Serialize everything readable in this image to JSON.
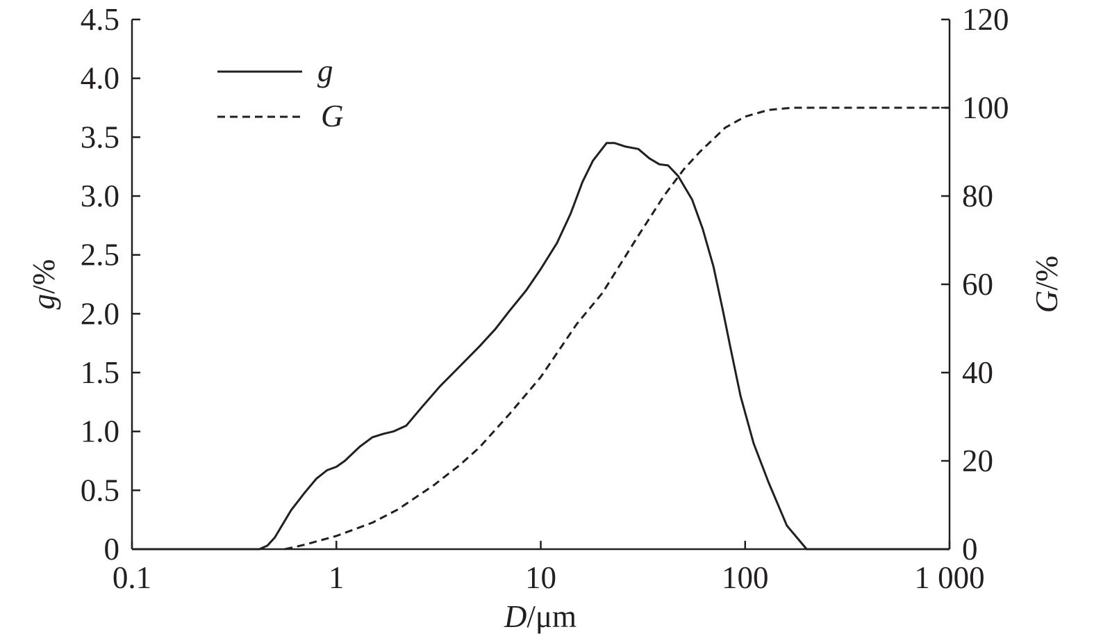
{
  "chart_data": {
    "type": "line",
    "x_axis": {
      "label_var": "D",
      "label_unit": "/μm",
      "scale": "log",
      "range": [
        0.1,
        1000
      ],
      "ticks": [
        0.1,
        1,
        10,
        100,
        1000
      ],
      "tick_labels": [
        "0.1",
        "1",
        "10",
        "100",
        "1 000"
      ]
    },
    "y_left": {
      "label_var": "g",
      "label_unit": "/%",
      "range": [
        0,
        4.5
      ],
      "ticks": [
        0,
        0.5,
        1.0,
        1.5,
        2.0,
        2.5,
        3.0,
        3.5,
        4.0,
        4.5
      ],
      "tick_labels": [
        "0",
        "0.5",
        "1.0",
        "1.5",
        "2.0",
        "2.5",
        "3.0",
        "3.5",
        "4.0",
        "4.5"
      ]
    },
    "y_right": {
      "label_var": "G",
      "label_unit": "/%",
      "range": [
        0,
        120
      ],
      "ticks": [
        0,
        20,
        40,
        60,
        80,
        100,
        120
      ],
      "tick_labels": [
        "0",
        "20",
        "40",
        "60",
        "80",
        "100",
        "120"
      ]
    },
    "legend": {
      "placement": "top-left"
    },
    "grid": false,
    "series": [
      {
        "name": "g",
        "axis": "left",
        "style": "solid",
        "x": [
          0.1,
          0.42,
          0.46,
          0.5,
          0.55,
          0.6,
          0.7,
          0.8,
          0.9,
          1.0,
          1.1,
          1.3,
          1.5,
          1.7,
          1.9,
          2.2,
          2.6,
          3.2,
          4.0,
          5.0,
          6.0,
          7.0,
          8.5,
          10,
          12,
          14,
          16,
          18,
          21,
          23,
          26,
          30,
          34,
          38,
          42,
          47,
          55,
          62,
          70,
          78,
          85,
          95,
          110,
          130,
          160,
          200,
          1000
        ],
        "values": [
          0,
          0,
          0.03,
          0.1,
          0.22,
          0.33,
          0.48,
          0.6,
          0.67,
          0.7,
          0.75,
          0.87,
          0.95,
          0.98,
          1.0,
          1.05,
          1.2,
          1.38,
          1.55,
          1.72,
          1.87,
          2.02,
          2.2,
          2.38,
          2.6,
          2.85,
          3.12,
          3.3,
          3.45,
          3.45,
          3.42,
          3.4,
          3.32,
          3.27,
          3.26,
          3.17,
          2.97,
          2.72,
          2.4,
          2.02,
          1.7,
          1.3,
          0.9,
          0.57,
          0.2,
          0,
          0
        ]
      },
      {
        "name": "G",
        "axis": "right",
        "style": "dashed",
        "x": [
          0.56,
          0.7,
          1.0,
          1.5,
          2.0,
          3.0,
          4.0,
          5.0,
          7.0,
          10,
          15,
          20,
          30,
          40,
          50,
          60,
          80,
          100,
          130,
          170,
          300,
          1000
        ],
        "values": [
          0,
          1,
          3,
          6,
          9,
          14.5,
          19,
          23,
          30.5,
          39,
          51,
          58,
          71,
          80,
          86,
          90,
          95.5,
          98,
          99.5,
          100,
          100,
          100
        ]
      }
    ]
  }
}
